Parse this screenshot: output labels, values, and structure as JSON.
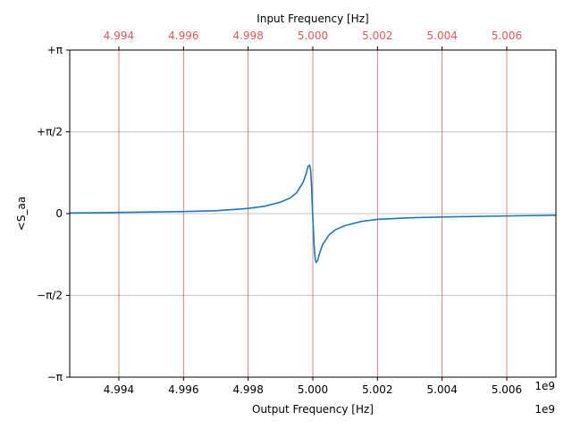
{
  "chart_data": {
    "type": "line",
    "title": "",
    "xlabel": "Output Frequency [Hz]",
    "xlabel_top": "Input Frequency [Hz]",
    "ylabel": "<S_aa",
    "x_offset_label": "1e9",
    "x_offset_label_top": "1e9",
    "xlim": [
      4.99248,
      5.00752
    ],
    "ylim": [
      -3.14159,
      3.14159
    ],
    "x_ticks": [
      4.994,
      4.996,
      4.998,
      5.0,
      5.002,
      5.004,
      5.006
    ],
    "x_tick_labels": [
      "4.994",
      "4.996",
      "4.998",
      "5.000",
      "5.002",
      "5.004",
      "5.006"
    ],
    "x_top_ticks": [
      4.994,
      4.996,
      4.998,
      5.0,
      5.002,
      5.004,
      5.006
    ],
    "x_top_tick_labels": [
      "4.994",
      "4.996",
      "4.998",
      "5.000",
      "5.002",
      "5.004",
      "5.006"
    ],
    "y_ticks": [
      -3.14159,
      -1.5708,
      0,
      1.5708,
      3.14159
    ],
    "y_tick_labels": [
      "−π",
      "−π/2",
      "0",
      "+π/2",
      "+π"
    ],
    "grid": {
      "horizontal": true,
      "vertical_top_axis": true
    },
    "series": [
      {
        "color": "#1f77b4",
        "x": [
          4.99248,
          4.994,
          4.996,
          4.997,
          4.998,
          4.9985,
          4.999,
          4.9993,
          4.9995,
          4.9997,
          4.9998,
          4.99985,
          4.9999,
          4.99993,
          4.99996,
          4.99999,
          5.00001,
          5.00004,
          5.00007,
          5.0001,
          5.00015,
          5.0002,
          5.0003,
          5.0005,
          5.0007,
          5.001,
          5.0015,
          5.002,
          5.003,
          5.004,
          5.006,
          5.00752
        ],
        "y": [
          0.012,
          0.022,
          0.04,
          0.055,
          0.1,
          0.14,
          0.22,
          0.3,
          0.4,
          0.6,
          0.78,
          0.9,
          0.93,
          0.85,
          0.55,
          0.05,
          -0.2,
          -0.6,
          -0.85,
          -0.94,
          -0.9,
          -0.78,
          -0.6,
          -0.41,
          -0.31,
          -0.23,
          -0.15,
          -0.11,
          -0.08,
          -0.065,
          -0.045,
          -0.032
        ]
      }
    ],
    "vertical_line_color": "#e06666",
    "gridline_color": "#b0b0b0"
  }
}
